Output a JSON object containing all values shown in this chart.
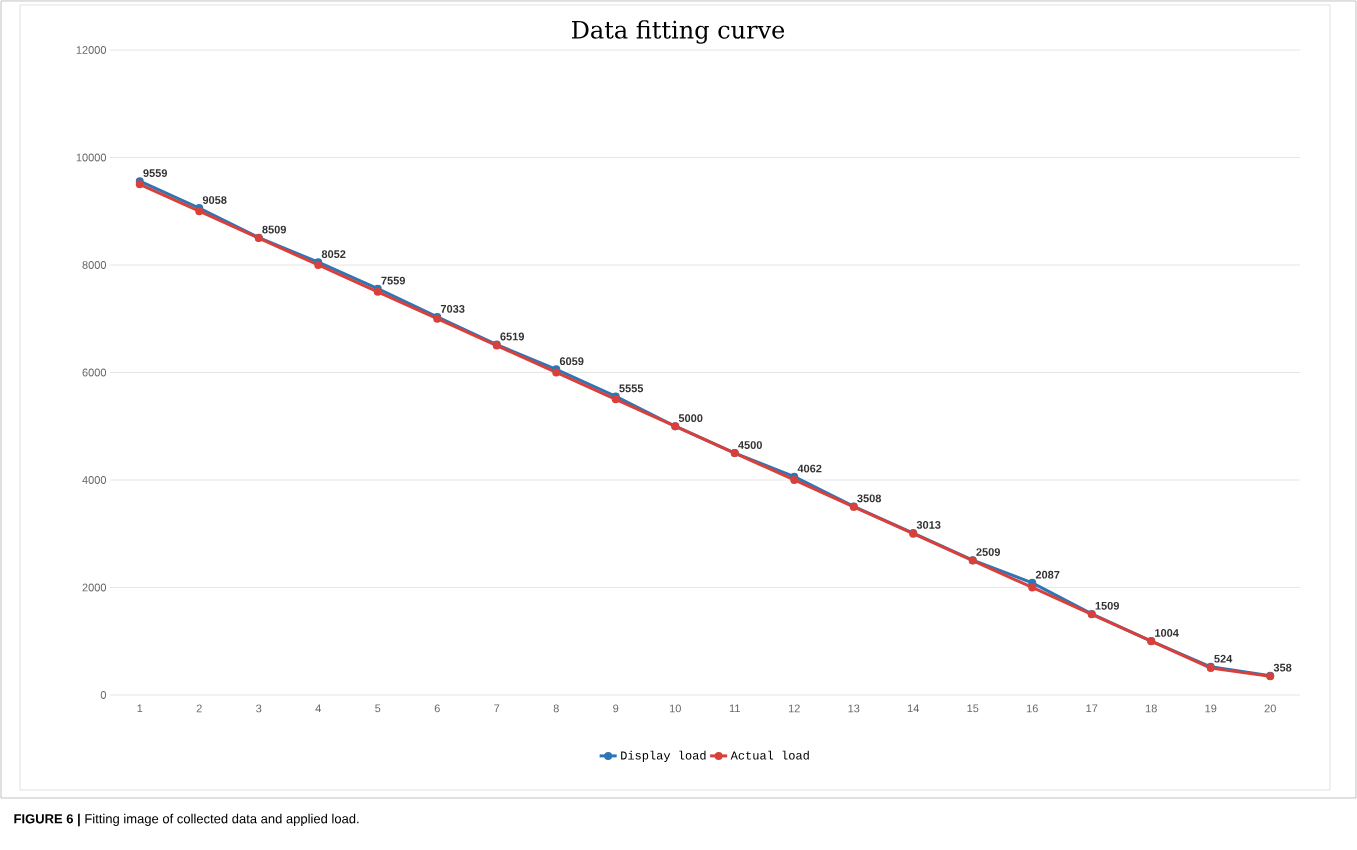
{
  "chart_data": {
    "type": "line",
    "title": "Data fitting curve",
    "categories": [
      "1",
      "2",
      "3",
      "4",
      "5",
      "6",
      "7",
      "8",
      "9",
      "10",
      "11",
      "12",
      "13",
      "14",
      "15",
      "16",
      "17",
      "18",
      "19",
      "20"
    ],
    "series": [
      {
        "name": "Display load",
        "color": "#2e75b6",
        "values": [
          9559,
          9058,
          8509,
          8052,
          7559,
          7033,
          6519,
          6059,
          5555,
          5000,
          4500,
          4062,
          3508,
          3013,
          2509,
          2087,
          1509,
          1004,
          524,
          358
        ],
        "value_labels": [
          "9559",
          "9058",
          "8509",
          "8052",
          "7559",
          "7033",
          "6519",
          "6059",
          "5555",
          "5000",
          "4500",
          "4062",
          "3508",
          "3013",
          "2509",
          "2087",
          "1509",
          "1004",
          "524",
          "358"
        ]
      },
      {
        "name": "Actual load",
        "color": "#d9403a",
        "values": [
          9500,
          9000,
          8500,
          8000,
          7500,
          7000,
          6500,
          6000,
          5500,
          5000,
          4500,
          4000,
          3500,
          3000,
          2500,
          2000,
          1500,
          1000,
          500,
          350
        ]
      }
    ],
    "ylim": [
      0,
      12000
    ],
    "yticks": [
      0,
      2000,
      4000,
      6000,
      8000,
      10000,
      12000
    ],
    "grid": "y",
    "legend": "bottom",
    "marker": "circle",
    "annotations": [
      "**FIGURE 6 |** Fitting image of collected data and applied load."
    ]
  }
}
